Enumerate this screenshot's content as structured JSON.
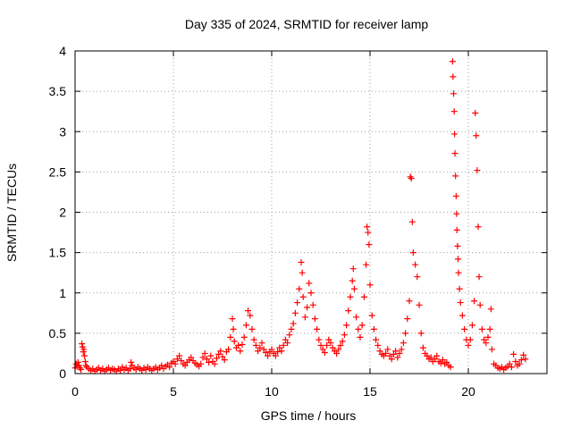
{
  "chart_data": {
    "type": "scatter",
    "title": "Day 335 of 2024, SRMTID for receiver lamp",
    "xlabel": "GPS time / hours",
    "ylabel": "SRMTID / TECUs",
    "xlim": [
      0,
      24
    ],
    "ylim": [
      0,
      4
    ],
    "x_ticks": [
      0,
      5,
      10,
      15,
      20
    ],
    "x_tick_labels": [
      "0",
      "5",
      "10",
      "15",
      "20"
    ],
    "y_ticks": [
      0,
      0.5,
      1,
      1.5,
      2,
      2.5,
      3,
      3.5,
      4
    ],
    "y_tick_labels": [
      "0",
      "0.5",
      "1",
      "1.5",
      "2",
      "2.5",
      "3",
      "3.5",
      "4"
    ],
    "grid": true,
    "marker": "plus",
    "marker_color": "#ff0000",
    "series": [
      {
        "name": "SRMTID",
        "points": [
          [
            0.0,
            0.07
          ],
          [
            0.05,
            0.12
          ],
          [
            0.1,
            0.09
          ],
          [
            0.15,
            0.14
          ],
          [
            0.2,
            0.1
          ],
          [
            0.25,
            0.07
          ],
          [
            0.3,
            0.05
          ],
          [
            0.35,
            0.37
          ],
          [
            0.38,
            0.33
          ],
          [
            0.42,
            0.27
          ],
          [
            0.45,
            0.3
          ],
          [
            0.48,
            0.22
          ],
          [
            0.52,
            0.15
          ],
          [
            0.55,
            0.1
          ],
          [
            0.6,
            0.08
          ],
          [
            0.7,
            0.06
          ],
          [
            0.8,
            0.04
          ],
          [
            0.9,
            0.06
          ],
          [
            1.0,
            0.03
          ],
          [
            1.1,
            0.05
          ],
          [
            1.2,
            0.07
          ],
          [
            1.3,
            0.04
          ],
          [
            1.4,
            0.06
          ],
          [
            1.5,
            0.03
          ],
          [
            1.6,
            0.05
          ],
          [
            1.7,
            0.07
          ],
          [
            1.8,
            0.04
          ],
          [
            1.9,
            0.06
          ],
          [
            2.0,
            0.05
          ],
          [
            2.1,
            0.03
          ],
          [
            2.2,
            0.06
          ],
          [
            2.3,
            0.04
          ],
          [
            2.4,
            0.08
          ],
          [
            2.5,
            0.05
          ],
          [
            2.6,
            0.07
          ],
          [
            2.7,
            0.04
          ],
          [
            2.8,
            0.06
          ],
          [
            2.85,
            0.14
          ],
          [
            2.9,
            0.1
          ],
          [
            3.0,
            0.07
          ],
          [
            3.1,
            0.05
          ],
          [
            3.2,
            0.08
          ],
          [
            3.3,
            0.06
          ],
          [
            3.4,
            0.04
          ],
          [
            3.5,
            0.07
          ],
          [
            3.6,
            0.05
          ],
          [
            3.7,
            0.08
          ],
          [
            3.8,
            0.06
          ],
          [
            3.9,
            0.04
          ],
          [
            4.0,
            0.06
          ],
          [
            4.1,
            0.08
          ],
          [
            4.2,
            0.05
          ],
          [
            4.3,
            0.07
          ],
          [
            4.4,
            0.1
          ],
          [
            4.5,
            0.06
          ],
          [
            4.6,
            0.09
          ],
          [
            4.7,
            0.11
          ],
          [
            4.8,
            0.08
          ],
          [
            4.9,
            0.13
          ],
          [
            5.0,
            0.15
          ],
          [
            5.1,
            0.12
          ],
          [
            5.2,
            0.18
          ],
          [
            5.3,
            0.22
          ],
          [
            5.4,
            0.16
          ],
          [
            5.5,
            0.12
          ],
          [
            5.6,
            0.1
          ],
          [
            5.7,
            0.14
          ],
          [
            5.8,
            0.17
          ],
          [
            5.9,
            0.2
          ],
          [
            6.0,
            0.16
          ],
          [
            6.1,
            0.13
          ],
          [
            6.2,
            0.11
          ],
          [
            6.3,
            0.09
          ],
          [
            6.4,
            0.12
          ],
          [
            6.5,
            0.2
          ],
          [
            6.6,
            0.25
          ],
          [
            6.7,
            0.18
          ],
          [
            6.8,
            0.14
          ],
          [
            6.9,
            0.22
          ],
          [
            7.0,
            0.15
          ],
          [
            7.1,
            0.12
          ],
          [
            7.2,
            0.19
          ],
          [
            7.3,
            0.24
          ],
          [
            7.4,
            0.28
          ],
          [
            7.5,
            0.21
          ],
          [
            7.6,
            0.17
          ],
          [
            7.7,
            0.27
          ],
          [
            7.8,
            0.3
          ],
          [
            7.9,
            0.45
          ],
          [
            8.0,
            0.68
          ],
          [
            8.05,
            0.55
          ],
          [
            8.1,
            0.4
          ],
          [
            8.2,
            0.32
          ],
          [
            8.3,
            0.35
          ],
          [
            8.4,
            0.28
          ],
          [
            8.5,
            0.36
          ],
          [
            8.6,
            0.45
          ],
          [
            8.7,
            0.6
          ],
          [
            8.8,
            0.78
          ],
          [
            8.9,
            0.72
          ],
          [
            9.0,
            0.55
          ],
          [
            9.1,
            0.42
          ],
          [
            9.2,
            0.35
          ],
          [
            9.3,
            0.28
          ],
          [
            9.4,
            0.32
          ],
          [
            9.5,
            0.38
          ],
          [
            9.6,
            0.3
          ],
          [
            9.7,
            0.26
          ],
          [
            9.8,
            0.22
          ],
          [
            9.9,
            0.27
          ],
          [
            10.0,
            0.3
          ],
          [
            10.1,
            0.25
          ],
          [
            10.2,
            0.22
          ],
          [
            10.3,
            0.27
          ],
          [
            10.4,
            0.32
          ],
          [
            10.5,
            0.28
          ],
          [
            10.6,
            0.35
          ],
          [
            10.7,
            0.42
          ],
          [
            10.8,
            0.38
          ],
          [
            10.9,
            0.48
          ],
          [
            11.0,
            0.55
          ],
          [
            11.1,
            0.62
          ],
          [
            11.2,
            0.75
          ],
          [
            11.3,
            0.88
          ],
          [
            11.4,
            1.05
          ],
          [
            11.5,
            1.38
          ],
          [
            11.55,
            1.25
          ],
          [
            11.6,
            0.95
          ],
          [
            11.7,
            0.7
          ],
          [
            11.8,
            0.82
          ],
          [
            11.9,
            1.12
          ],
          [
            12.0,
            1.0
          ],
          [
            12.1,
            0.85
          ],
          [
            12.2,
            0.68
          ],
          [
            12.3,
            0.55
          ],
          [
            12.4,
            0.42
          ],
          [
            12.5,
            0.35
          ],
          [
            12.6,
            0.3
          ],
          [
            12.7,
            0.26
          ],
          [
            12.8,
            0.35
          ],
          [
            12.9,
            0.42
          ],
          [
            13.0,
            0.38
          ],
          [
            13.1,
            0.32
          ],
          [
            13.2,
            0.28
          ],
          [
            13.3,
            0.25
          ],
          [
            13.4,
            0.3
          ],
          [
            13.5,
            0.35
          ],
          [
            13.6,
            0.4
          ],
          [
            13.7,
            0.48
          ],
          [
            13.8,
            0.6
          ],
          [
            13.9,
            0.78
          ],
          [
            14.0,
            0.95
          ],
          [
            14.1,
            1.15
          ],
          [
            14.15,
            1.3
          ],
          [
            14.2,
            1.05
          ],
          [
            14.3,
            0.7
          ],
          [
            14.4,
            0.55
          ],
          [
            14.5,
            0.45
          ],
          [
            14.6,
            0.6
          ],
          [
            14.7,
            0.95
          ],
          [
            14.8,
            1.35
          ],
          [
            14.85,
            1.82
          ],
          [
            14.9,
            1.75
          ],
          [
            14.95,
            1.6
          ],
          [
            15.0,
            1.1
          ],
          [
            15.1,
            0.72
          ],
          [
            15.2,
            0.55
          ],
          [
            15.3,
            0.42
          ],
          [
            15.4,
            0.35
          ],
          [
            15.5,
            0.28
          ],
          [
            15.6,
            0.24
          ],
          [
            15.7,
            0.22
          ],
          [
            15.8,
            0.25
          ],
          [
            15.9,
            0.3
          ],
          [
            16.0,
            0.22
          ],
          [
            16.1,
            0.18
          ],
          [
            16.2,
            0.24
          ],
          [
            16.3,
            0.28
          ],
          [
            16.4,
            0.2
          ],
          [
            16.5,
            0.25
          ],
          [
            16.6,
            0.3
          ],
          [
            16.7,
            0.38
          ],
          [
            16.8,
            0.5
          ],
          [
            16.9,
            0.68
          ],
          [
            17.0,
            0.9
          ],
          [
            17.05,
            2.44
          ],
          [
            17.1,
            2.42
          ],
          [
            17.15,
            1.88
          ],
          [
            17.2,
            1.5
          ],
          [
            17.3,
            1.35
          ],
          [
            17.4,
            1.2
          ],
          [
            17.5,
            0.85
          ],
          [
            17.6,
            0.5
          ],
          [
            17.7,
            0.32
          ],
          [
            17.8,
            0.25
          ],
          [
            17.9,
            0.22
          ],
          [
            18.0,
            0.18
          ],
          [
            18.1,
            0.2
          ],
          [
            18.2,
            0.15
          ],
          [
            18.3,
            0.18
          ],
          [
            18.4,
            0.22
          ],
          [
            18.5,
            0.15
          ],
          [
            18.6,
            0.13
          ],
          [
            18.7,
            0.17
          ],
          [
            18.8,
            0.12
          ],
          [
            18.9,
            0.14
          ],
          [
            19.0,
            0.1
          ],
          [
            19.1,
            0.08
          ],
          [
            19.2,
            3.87
          ],
          [
            19.22,
            3.68
          ],
          [
            19.25,
            3.47
          ],
          [
            19.28,
            3.25
          ],
          [
            19.3,
            2.97
          ],
          [
            19.32,
            2.73
          ],
          [
            19.35,
            2.45
          ],
          [
            19.38,
            2.2
          ],
          [
            19.4,
            1.98
          ],
          [
            19.42,
            1.78
          ],
          [
            19.45,
            1.58
          ],
          [
            19.48,
            1.42
          ],
          [
            19.5,
            1.25
          ],
          [
            19.55,
            1.05
          ],
          [
            19.6,
            0.88
          ],
          [
            19.7,
            0.72
          ],
          [
            19.8,
            0.55
          ],
          [
            19.9,
            0.42
          ],
          [
            20.0,
            0.35
          ],
          [
            20.1,
            0.42
          ],
          [
            20.2,
            0.6
          ],
          [
            20.3,
            0.9
          ],
          [
            20.35,
            3.23
          ],
          [
            20.4,
            2.95
          ],
          [
            20.45,
            2.52
          ],
          [
            20.5,
            1.82
          ],
          [
            20.55,
            1.2
          ],
          [
            20.6,
            0.85
          ],
          [
            20.7,
            0.55
          ],
          [
            20.8,
            0.42
          ],
          [
            20.9,
            0.38
          ],
          [
            21.0,
            0.45
          ],
          [
            21.1,
            0.55
          ],
          [
            21.15,
            0.8
          ],
          [
            21.2,
            0.3
          ],
          [
            21.3,
            0.12
          ],
          [
            21.4,
            0.1
          ],
          [
            21.5,
            0.07
          ],
          [
            21.6,
            0.06
          ],
          [
            21.7,
            0.08
          ],
          [
            21.8,
            0.05
          ],
          [
            21.9,
            0.07
          ],
          [
            22.0,
            0.09
          ],
          [
            22.1,
            0.12
          ],
          [
            22.2,
            0.08
          ],
          [
            22.3,
            0.24
          ],
          [
            22.4,
            0.15
          ],
          [
            22.5,
            0.1
          ],
          [
            22.6,
            0.12
          ],
          [
            22.7,
            0.17
          ],
          [
            22.8,
            0.23
          ],
          [
            22.9,
            0.18
          ]
        ]
      }
    ]
  }
}
